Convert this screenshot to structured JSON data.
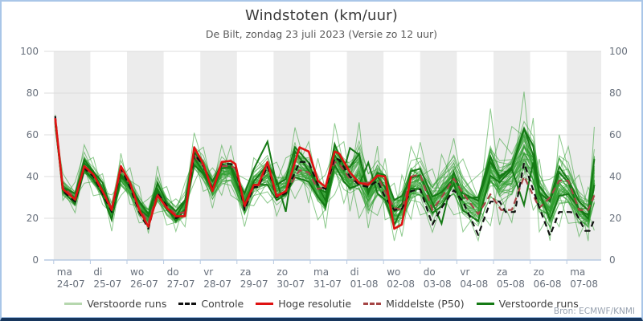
{
  "header": {
    "title": "Windstoten (km/uur)",
    "subtitle": "De Bilt, zondag 23 juli 2023 (Versie zo 12 uur)"
  },
  "source": "Bron: ECMWF/KNMI",
  "legend": {
    "items": [
      {
        "label": "Verstoorde runs",
        "style": "solid",
        "color": "#b6d7ae"
      },
      {
        "label": "Controle",
        "style": "dashed",
        "color": "#111111"
      },
      {
        "label": "Hoge resolutie",
        "style": "solid",
        "color": "#df1212"
      },
      {
        "label": "Middelste (P50)",
        "style": "dashed",
        "color": "#a54545"
      },
      {
        "label": "Verstoorde runs",
        "style": "solid",
        "color": "#157a15"
      }
    ]
  },
  "colors": {
    "band_gray": "#ececec",
    "grid": "#dcdcdc",
    "axis_line": "#b7c9e2",
    "tick": "#b7c9e2",
    "axis_text": "#68707c",
    "member_green": "#2f9e2f",
    "bold_green": "#157a15",
    "control_black": "#111111",
    "hires_red": "#df1212",
    "p50_darkred": "#a54545"
  },
  "chart_data": {
    "type": "line",
    "title": "Windstoten (km/uur)",
    "subtitle": "De Bilt, zondag 23 juli 2023 (Versie zo 12 uur)",
    "x_unit": "hours since 2023-07-23 12:00",
    "ylim": [
      0,
      100
    ],
    "yticks": [
      0,
      20,
      40,
      60,
      80,
      100
    ],
    "grid": true,
    "legend_position": "bottom",
    "days": [
      {
        "abbr": "ma",
        "date": "24-07"
      },
      {
        "abbr": "di",
        "date": "25-07"
      },
      {
        "abbr": "wo",
        "date": "26-07"
      },
      {
        "abbr": "do",
        "date": "27-07"
      },
      {
        "abbr": "vr",
        "date": "28-07"
      },
      {
        "abbr": "za",
        "date": "29-07"
      },
      {
        "abbr": "zo",
        "date": "30-07"
      },
      {
        "abbr": "ma",
        "date": "31-07"
      },
      {
        "abbr": "di",
        "date": "01-08"
      },
      {
        "abbr": "wo",
        "date": "02-08"
      },
      {
        "abbr": "do",
        "date": "03-08"
      },
      {
        "abbr": "vr",
        "date": "04-08"
      },
      {
        "abbr": "za",
        "date": "05-08"
      },
      {
        "abbr": "zo",
        "date": "06-08"
      },
      {
        "abbr": "ma",
        "date": "07-08"
      }
    ],
    "series": [
      {
        "name": "Hoge resolutie",
        "points": [
          [
            13,
            68
          ],
          [
            18,
            34
          ],
          [
            26,
            29
          ],
          [
            32,
            45
          ],
          [
            38,
            41
          ],
          [
            44,
            33
          ],
          [
            50,
            24
          ],
          [
            56,
            45
          ],
          [
            62,
            37
          ],
          [
            68,
            24
          ],
          [
            74,
            16
          ],
          [
            80,
            31
          ],
          [
            86,
            25
          ],
          [
            92,
            21
          ],
          [
            98,
            21
          ],
          [
            104,
            54
          ],
          [
            110,
            46
          ],
          [
            116,
            33
          ],
          [
            122,
            47
          ],
          [
            128,
            47.5
          ],
          [
            131,
            46
          ],
          [
            137,
            26
          ],
          [
            143,
            36
          ],
          [
            146,
            36
          ],
          [
            152,
            47
          ],
          [
            158,
            30.5
          ],
          [
            164,
            33
          ],
          [
            173,
            54
          ],
          [
            179,
            52
          ],
          [
            185,
            38
          ],
          [
            190,
            35
          ],
          [
            196,
            52
          ],
          [
            199,
            51
          ],
          [
            206,
            42
          ],
          [
            212,
            37
          ],
          [
            218,
            36
          ],
          [
            224,
            40.5
          ],
          [
            229,
            40
          ],
          [
            235,
            15
          ],
          [
            240,
            17
          ],
          [
            246,
            40
          ]
        ]
      },
      {
        "name": "Controle",
        "points": [
          [
            13,
            69
          ],
          [
            18,
            33
          ],
          [
            26,
            28
          ],
          [
            32,
            44
          ],
          [
            38,
            40
          ],
          [
            44,
            32
          ],
          [
            50,
            23
          ],
          [
            56,
            44
          ],
          [
            62,
            35
          ],
          [
            68,
            23
          ],
          [
            74,
            15
          ],
          [
            80,
            32
          ],
          [
            86,
            26
          ],
          [
            92,
            20
          ],
          [
            98,
            22
          ],
          [
            104,
            51
          ],
          [
            110,
            45
          ],
          [
            116,
            34
          ],
          [
            122,
            46
          ],
          [
            128,
            46
          ],
          [
            131,
            45
          ],
          [
            137,
            24
          ],
          [
            143,
            35
          ],
          [
            146,
            35
          ],
          [
            152,
            45
          ],
          [
            158,
            30
          ],
          [
            164,
            32
          ],
          [
            173,
            47
          ],
          [
            179,
            47
          ],
          [
            185,
            36
          ],
          [
            190,
            34
          ],
          [
            196,
            49
          ],
          [
            199,
            48
          ],
          [
            206,
            40
          ],
          [
            212,
            36
          ],
          [
            218,
            35
          ],
          [
            224,
            38
          ],
          [
            229,
            30
          ],
          [
            235,
            24
          ],
          [
            240,
            24.5
          ],
          [
            246,
            33
          ],
          [
            252,
            34
          ],
          [
            260,
            17
          ],
          [
            266,
            25
          ],
          [
            274,
            33.5
          ],
          [
            280,
            28
          ],
          [
            290,
            12
          ],
          [
            298,
            28
          ],
          [
            304,
            28
          ],
          [
            308,
            23
          ],
          [
            314,
            23
          ],
          [
            320,
            46.5
          ],
          [
            330,
            25
          ],
          [
            337,
            11.7
          ],
          [
            343,
            23
          ],
          [
            350,
            23
          ],
          [
            354,
            22.5
          ],
          [
            360,
            14
          ],
          [
            363,
            14
          ],
          [
            366,
            19.5
          ]
        ]
      },
      {
        "name": "Middelste (P50)",
        "points": [
          [
            13,
            67
          ],
          [
            18,
            35
          ],
          [
            26,
            30
          ],
          [
            32,
            44
          ],
          [
            38,
            41
          ],
          [
            44,
            33
          ],
          [
            50,
            25
          ],
          [
            56,
            43
          ],
          [
            62,
            36
          ],
          [
            68,
            25
          ],
          [
            74,
            18
          ],
          [
            80,
            32
          ],
          [
            86,
            26
          ],
          [
            92,
            22
          ],
          [
            98,
            23
          ],
          [
            104,
            50
          ],
          [
            110,
            45
          ],
          [
            116,
            34
          ],
          [
            122,
            45
          ],
          [
            128,
            45
          ],
          [
            131,
            44
          ],
          [
            137,
            25
          ],
          [
            143,
            35
          ],
          [
            146,
            35
          ],
          [
            152,
            45
          ],
          [
            158,
            31
          ],
          [
            164,
            33
          ],
          [
            173,
            43
          ],
          [
            179,
            42
          ],
          [
            185,
            34
          ],
          [
            190,
            35
          ],
          [
            196,
            47
          ],
          [
            199,
            46
          ],
          [
            206,
            39
          ],
          [
            212,
            37
          ],
          [
            218,
            37
          ],
          [
            224,
            40
          ],
          [
            229,
            33
          ],
          [
            235,
            25
          ],
          [
            240,
            24
          ],
          [
            246,
            40
          ],
          [
            252,
            41
          ],
          [
            260,
            24
          ],
          [
            266,
            30
          ],
          [
            274,
            39
          ],
          [
            280,
            32
          ],
          [
            290,
            22
          ],
          [
            298,
            31.5
          ],
          [
            305,
            24
          ],
          [
            312,
            24
          ],
          [
            320,
            40
          ],
          [
            330,
            25
          ],
          [
            337,
            30
          ],
          [
            343,
            38
          ],
          [
            349,
            38
          ],
          [
            356,
            24
          ],
          [
            362,
            24
          ],
          [
            366,
            31
          ]
        ]
      }
    ],
    "ensemble": {
      "name": "Verstoorde runs",
      "count": 50,
      "seed": 7,
      "bold_indices": [
        4,
        17,
        31
      ],
      "envelope": [
        [
          13,
          62,
          70
        ],
        [
          18,
          28,
          42
        ],
        [
          26,
          22,
          38
        ],
        [
          32,
          36,
          56
        ],
        [
          38,
          30,
          50
        ],
        [
          44,
          26,
          42
        ],
        [
          50,
          13,
          32
        ],
        [
          56,
          30,
          52
        ],
        [
          62,
          26,
          45
        ],
        [
          68,
          17,
          36
        ],
        [
          74,
          12,
          30
        ],
        [
          80,
          22,
          46
        ],
        [
          86,
          16,
          36
        ],
        [
          92,
          13,
          30
        ],
        [
          98,
          15,
          38
        ],
        [
          104,
          36,
          62
        ],
        [
          110,
          32,
          55
        ],
        [
          116,
          24,
          45
        ],
        [
          122,
          30,
          56
        ],
        [
          128,
          30,
          56
        ],
        [
          137,
          15,
          40
        ],
        [
          143,
          25,
          50
        ],
        [
          152,
          26,
          58
        ],
        [
          158,
          20,
          48
        ],
        [
          164,
          22,
          50
        ],
        [
          170,
          28,
          65
        ],
        [
          179,
          26,
          58
        ],
        [
          185,
          18,
          50
        ],
        [
          190,
          14,
          42
        ],
        [
          196,
          30,
          67
        ],
        [
          202,
          26,
          58
        ],
        [
          206,
          22,
          55
        ],
        [
          212,
          18,
          68
        ],
        [
          218,
          14,
          48
        ],
        [
          224,
          20,
          56
        ],
        [
          229,
          18,
          50
        ],
        [
          235,
          8,
          38
        ],
        [
          240,
          10,
          42
        ],
        [
          246,
          18,
          56
        ],
        [
          252,
          20,
          58
        ],
        [
          260,
          12,
          45
        ],
        [
          266,
          16,
          52
        ],
        [
          274,
          20,
          60
        ],
        [
          280,
          12,
          50
        ],
        [
          290,
          8,
          42
        ],
        [
          298,
          14,
          75
        ],
        [
          304,
          15,
          60
        ],
        [
          312,
          16,
          66
        ],
        [
          320,
          24,
          83
        ],
        [
          326,
          22,
          70
        ],
        [
          330,
          12,
          50
        ],
        [
          337,
          8,
          40
        ],
        [
          343,
          14,
          62
        ],
        [
          349,
          16,
          56
        ],
        [
          356,
          10,
          42
        ],
        [
          362,
          8,
          36
        ],
        [
          366,
          12,
          66
        ]
      ]
    }
  }
}
